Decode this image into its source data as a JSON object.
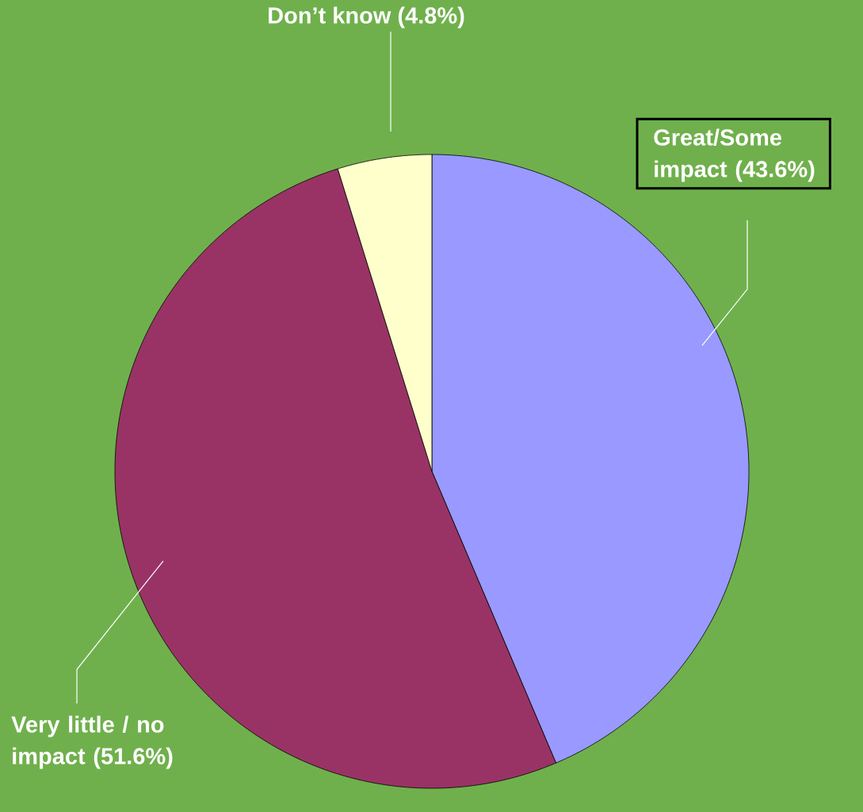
{
  "chart_data": {
    "type": "pie",
    "categories": [
      "Great/Some impact",
      "Very little / no impact",
      "Don’t know"
    ],
    "values": [
      43.6,
      51.6,
      4.8
    ],
    "value_labels": [
      "(43.6%)",
      "(51.6%)",
      "(4.8%)"
    ],
    "colors": [
      "#9999ff",
      "#993366",
      "#ffffcc"
    ]
  }
}
